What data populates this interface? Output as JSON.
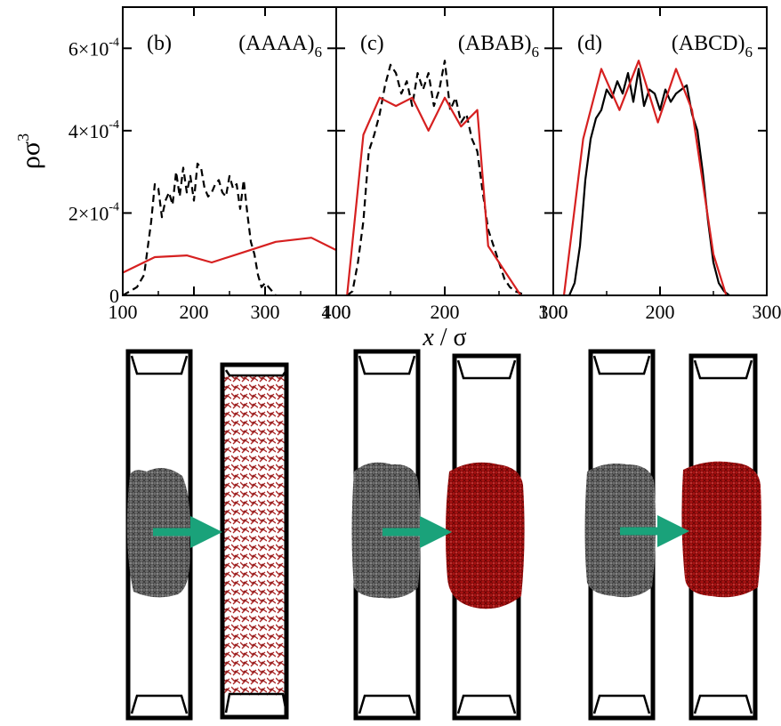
{
  "figure": {
    "ylabel": "ρσ",
    "ylabel_sup": "3",
    "xlabel_italic": "x",
    "xlabel_rest": " / σ"
  },
  "colors": {
    "black_series": "#000000",
    "red_series": "#d62020",
    "arrow": "#1aa27a",
    "polymer_gray": "#555555",
    "polymer_red": "#a01010"
  },
  "chart_data": [
    {
      "type": "line",
      "panel_label": "(b)",
      "sequence": "(AAAA)",
      "sequence_sub": "6",
      "xlim": [
        100,
        400
      ],
      "ylim": [
        0,
        0.0007
      ],
      "xticks": [
        "100",
        "200",
        "300",
        "400"
      ],
      "yticks": [
        {
          "mant": "0",
          "exp": ""
        },
        {
          "mant": "2×10",
          "exp": "-4"
        },
        {
          "mant": "4×10",
          "exp": "-4"
        },
        {
          "mant": "6×10",
          "exp": "-4"
        }
      ],
      "ytick_values": [
        0,
        0.0002,
        0.0004,
        0.0006
      ],
      "series": [
        {
          "style": "dashed-black",
          "x": [
            100,
            110,
            120,
            130,
            140,
            145,
            150,
            155,
            160,
            165,
            170,
            175,
            180,
            185,
            190,
            195,
            200,
            205,
            210,
            215,
            220,
            225,
            230,
            235,
            240,
            245,
            250,
            255,
            260,
            265,
            270,
            275,
            280,
            285,
            290,
            295,
            300,
            305,
            310,
            315
          ],
          "y": [
            0,
            1e-05,
            2e-05,
            5e-05,
            0.00018,
            0.00027,
            0.00026,
            0.00019,
            0.00023,
            0.00025,
            0.00022,
            0.0003,
            0.00024,
            0.00031,
            0.00025,
            0.00029,
            0.00023,
            0.00032,
            0.00031,
            0.00026,
            0.00024,
            0.00025,
            0.00027,
            0.00028,
            0.00025,
            0.00024,
            0.00029,
            0.00026,
            0.00027,
            0.00021,
            0.00028,
            0.0002,
            0.00013,
            0.0001,
            5e-05,
            2e-05,
            3e-05,
            2e-05,
            1e-05,
            0
          ]
        },
        {
          "style": "solid-red",
          "x": [
            100,
            145,
            190,
            225,
            270,
            315,
            365,
            400
          ],
          "y": [
            5.5e-05,
            9.3e-05,
            9.7e-05,
            8e-05,
            0.000105,
            0.00013,
            0.00014,
            0.00011
          ]
        }
      ]
    },
    {
      "type": "line",
      "panel_label": "(c)",
      "sequence": "(ABAB)",
      "sequence_sub": "6",
      "xlim": [
        100,
        300
      ],
      "ylim": [
        0,
        0.0007
      ],
      "xticks": [
        "100",
        "200",
        "300"
      ],
      "ytick_values": [
        0,
        0.0002,
        0.0004,
        0.0006
      ],
      "series": [
        {
          "style": "dashed-black",
          "x": [
            110,
            115,
            120,
            125,
            130,
            135,
            140,
            145,
            150,
            155,
            160,
            165,
            170,
            175,
            180,
            185,
            190,
            195,
            200,
            205,
            210,
            215,
            220,
            225,
            230,
            235,
            240,
            245,
            250,
            255,
            260,
            265,
            270,
            275
          ],
          "y": [
            0,
            1e-05,
            8e-05,
            0.00018,
            0.00035,
            0.00039,
            0.00044,
            0.00051,
            0.00056,
            0.00054,
            0.00049,
            0.00052,
            0.00046,
            0.00054,
            0.0005,
            0.00054,
            0.00046,
            0.0005,
            0.00057,
            0.00045,
            0.00048,
            0.00042,
            0.00044,
            0.00038,
            0.00035,
            0.00025,
            0.00016,
            0.00012,
            8e-05,
            4e-05,
            2e-05,
            1e-05,
            5e-06,
            0
          ]
        },
        {
          "style": "solid-red",
          "x": [
            110,
            125,
            140,
            155,
            170,
            185,
            200,
            215,
            230,
            240,
            270
          ],
          "y": [
            0,
            0.00039,
            0.00048,
            0.00046,
            0.00048,
            0.0004,
            0.00048,
            0.00041,
            0.00045,
            0.00012,
            0
          ]
        }
      ]
    },
    {
      "type": "line",
      "panel_label": "(d)",
      "sequence": "(ABCD)",
      "sequence_sub": "6",
      "xlim": [
        100,
        300
      ],
      "ylim": [
        0,
        0.0007
      ],
      "xticks": [
        "100",
        "200",
        "300"
      ],
      "ytick_values": [
        0,
        0.0002,
        0.0004,
        0.0006
      ],
      "series": [
        {
          "style": "solid-black",
          "x": [
            115,
            120,
            125,
            130,
            135,
            140,
            145,
            150,
            155,
            160,
            165,
            170,
            175,
            180,
            185,
            190,
            195,
            200,
            205,
            210,
            215,
            220,
            225,
            230,
            235,
            240,
            245,
            250,
            255,
            260,
            265
          ],
          "y": [
            0,
            3e-05,
            0.00012,
            0.00028,
            0.00038,
            0.00043,
            0.00045,
            0.0005,
            0.00048,
            0.00052,
            0.00049,
            0.00054,
            0.00047,
            0.00055,
            0.00046,
            0.0005,
            0.00049,
            0.00045,
            0.0005,
            0.00047,
            0.00049,
            0.0005,
            0.00051,
            0.00044,
            0.0004,
            0.0003,
            0.00018,
            8e-05,
            3e-05,
            1e-05,
            0
          ]
        },
        {
          "style": "solid-red",
          "x": [
            110,
            128,
            145,
            162,
            180,
            198,
            215,
            230,
            250,
            262
          ],
          "y": [
            0,
            0.00038,
            0.00055,
            0.00045,
            0.00057,
            0.00042,
            0.00055,
            0.00045,
            0.0001,
            0
          ]
        }
      ]
    }
  ]
}
